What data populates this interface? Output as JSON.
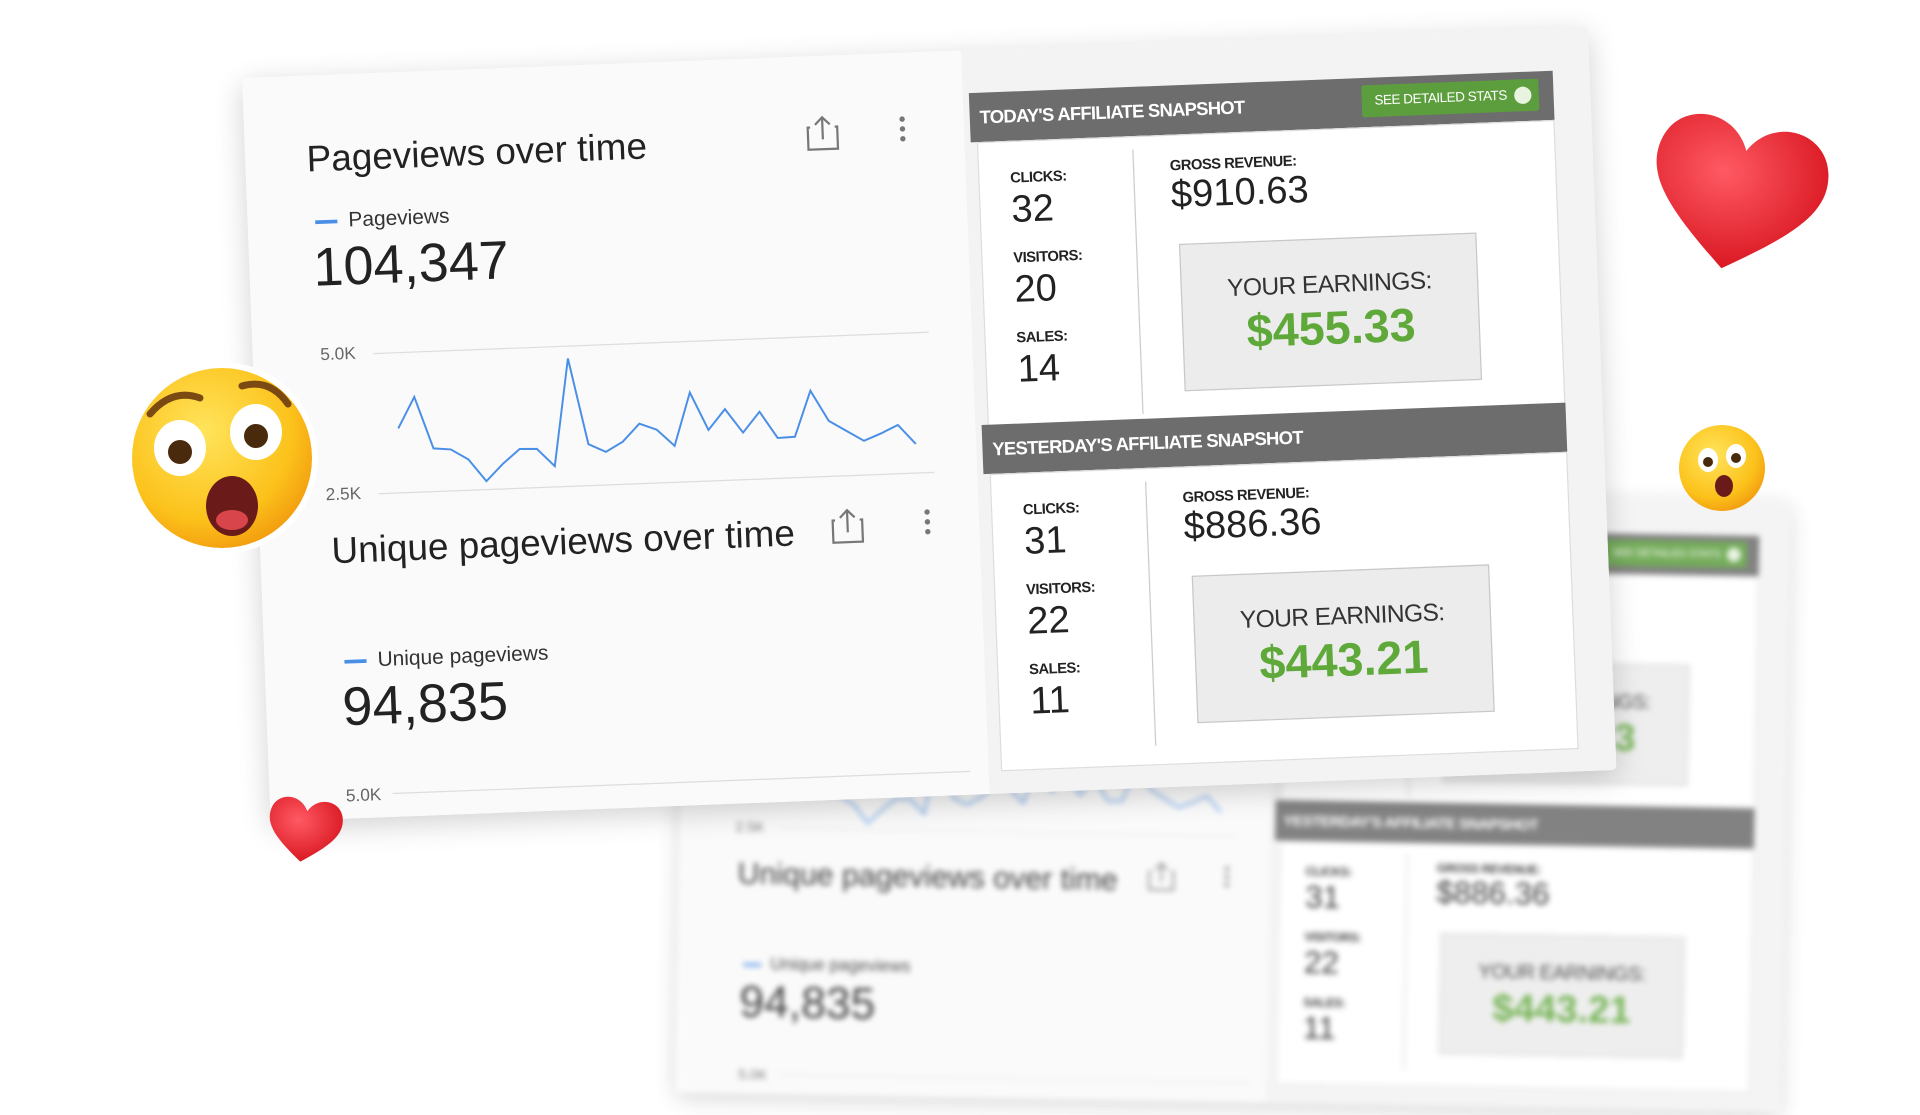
{
  "pageviews_card": {
    "title": "Pageviews over time",
    "legend": "Pageviews",
    "total": "104,347",
    "chart": {
      "type": "line",
      "color": "#4a8fe7",
      "values": [
        3650,
        4200,
        3270,
        3240,
        3050,
        2650,
        2950,
        3200,
        3190,
        2870,
        4780,
        3240,
        3090,
        3260,
        3570,
        3450,
        3150,
        4090,
        3410,
        3770,
        3340,
        3700,
        3220,
        3230,
        4040,
        3490,
        3300,
        3110,
        3230,
        3370,
        3020
      ],
      "ylim": [
        2500,
        5000
      ],
      "yticks": [
        {
          "value": 2500,
          "label": "2.5K"
        },
        {
          "value": 5000,
          "label": "5.0K"
        }
      ]
    }
  },
  "unique_card": {
    "title": "Unique pageviews over time",
    "legend": "Unique pageviews",
    "total": "94,835",
    "tick_label": "5.0K"
  },
  "today": {
    "header": "TODAY'S AFFILIATE SNAPSHOT",
    "button": "SEE DETAILED STATS",
    "stats": [
      {
        "label": "CLICKS:",
        "value": 32
      },
      {
        "label": "VISITORS:",
        "value": 20
      },
      {
        "label": "SALES:",
        "value": 14
      }
    ],
    "gross_label": "GROSS REVENUE:",
    "gross": "$910.63",
    "earnings_label": "YOUR EARNINGS:",
    "earnings": "$455.33"
  },
  "yesterday": {
    "header": "YESTERDAY'S AFFILIATE SNAPSHOT",
    "stats": [
      {
        "label": "CLICKS:",
        "value": 31
      },
      {
        "label": "VISITORS:",
        "value": 22
      },
      {
        "label": "SALES:",
        "value": 11
      }
    ],
    "gross_label": "GROSS REVENUE:",
    "gross": "$886.36",
    "earnings_label": "YOUR EARNINGS:",
    "earnings": "$443.21"
  }
}
